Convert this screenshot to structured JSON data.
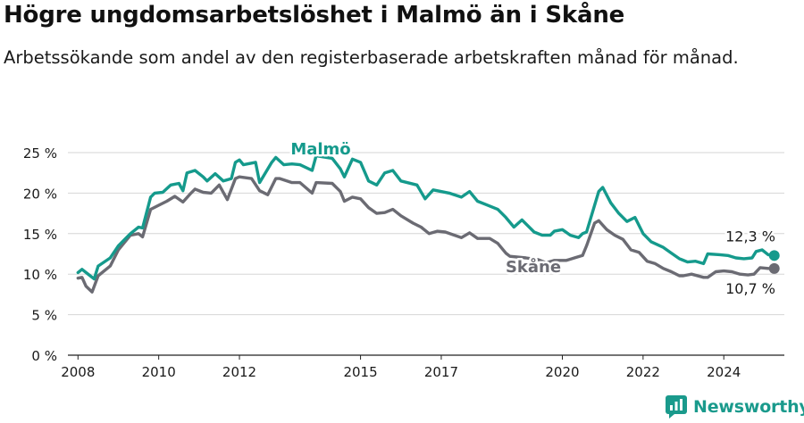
{
  "title": "Högre ungdomsarbetslöshet i Malmö än i Skåne",
  "subtitle": "Arbetssökande som andel av den registerbaserade arbetskraften månad för månad.",
  "brand": {
    "name": "Newsworthy",
    "icon": "newsworthy-logo-icon",
    "color": "#1a9a8c"
  },
  "chart_data": {
    "type": "line",
    "ylim": [
      0,
      25
    ],
    "y_ticks": [
      "0 %",
      "5 %",
      "10 %",
      "15 %",
      "20 %",
      "25 %"
    ],
    "x_ticks": [
      "2008",
      "2010",
      "2012",
      "2015",
      "2017",
      "2020",
      "2022",
      "2024"
    ],
    "xlim": [
      2007.75,
      2025.5
    ],
    "grid": true,
    "series": [
      {
        "name": "Malmö",
        "color": "#159a8c",
        "end_label": "12,3 %",
        "points": [
          [
            2008.0,
            10.2
          ],
          [
            2008.1,
            10.6
          ],
          [
            2008.3,
            9.8
          ],
          [
            2008.4,
            9.4
          ],
          [
            2008.5,
            11.0
          ],
          [
            2008.8,
            12.0
          ],
          [
            2009.0,
            13.5
          ],
          [
            2009.3,
            15.0
          ],
          [
            2009.5,
            15.8
          ],
          [
            2009.6,
            15.7
          ],
          [
            2009.8,
            19.5
          ],
          [
            2009.9,
            20.0
          ],
          [
            2010.1,
            20.1
          ],
          [
            2010.3,
            21.0
          ],
          [
            2010.5,
            21.2
          ],
          [
            2010.6,
            20.3
          ],
          [
            2010.7,
            22.5
          ],
          [
            2010.9,
            22.8
          ],
          [
            2011.1,
            22.0
          ],
          [
            2011.2,
            21.5
          ],
          [
            2011.4,
            22.4
          ],
          [
            2011.6,
            21.5
          ],
          [
            2011.8,
            21.8
          ],
          [
            2011.9,
            23.8
          ],
          [
            2012.0,
            24.1
          ],
          [
            2012.1,
            23.5
          ],
          [
            2012.4,
            23.8
          ],
          [
            2012.5,
            21.3
          ],
          [
            2012.8,
            23.8
          ],
          [
            2012.9,
            24.4
          ],
          [
            2013.1,
            23.5
          ],
          [
            2013.3,
            23.6
          ],
          [
            2013.5,
            23.5
          ],
          [
            2013.8,
            22.8
          ],
          [
            2013.9,
            24.6
          ],
          [
            2014.3,
            24.3
          ],
          [
            2014.5,
            23.0
          ],
          [
            2014.6,
            22.0
          ],
          [
            2014.8,
            24.2
          ],
          [
            2015.0,
            23.8
          ],
          [
            2015.2,
            21.5
          ],
          [
            2015.4,
            21.0
          ],
          [
            2015.6,
            22.5
          ],
          [
            2015.8,
            22.8
          ],
          [
            2016.0,
            21.5
          ],
          [
            2016.4,
            21.0
          ],
          [
            2016.6,
            19.3
          ],
          [
            2016.8,
            20.4
          ],
          [
            2017.2,
            20.0
          ],
          [
            2017.5,
            19.5
          ],
          [
            2017.7,
            20.2
          ],
          [
            2017.9,
            19.0
          ],
          [
            2018.1,
            18.6
          ],
          [
            2018.4,
            18.0
          ],
          [
            2018.6,
            17.0
          ],
          [
            2018.8,
            15.8
          ],
          [
            2019.0,
            16.7
          ],
          [
            2019.3,
            15.2
          ],
          [
            2019.5,
            14.8
          ],
          [
            2019.7,
            14.8
          ],
          [
            2019.8,
            15.3
          ],
          [
            2020.0,
            15.5
          ],
          [
            2020.2,
            14.8
          ],
          [
            2020.4,
            14.5
          ],
          [
            2020.5,
            15.0
          ],
          [
            2020.6,
            15.2
          ],
          [
            2020.9,
            20.2
          ],
          [
            2021.0,
            20.7
          ],
          [
            2021.2,
            18.8
          ],
          [
            2021.4,
            17.5
          ],
          [
            2021.6,
            16.5
          ],
          [
            2021.8,
            17.0
          ],
          [
            2022.0,
            15.0
          ],
          [
            2022.2,
            14.0
          ],
          [
            2022.5,
            13.3
          ],
          [
            2022.7,
            12.6
          ],
          [
            2022.9,
            11.9
          ],
          [
            2023.1,
            11.5
          ],
          [
            2023.3,
            11.6
          ],
          [
            2023.5,
            11.3
          ],
          [
            2023.6,
            12.5
          ],
          [
            2023.9,
            12.4
          ],
          [
            2024.1,
            12.3
          ],
          [
            2024.3,
            12.0
          ],
          [
            2024.5,
            11.9
          ],
          [
            2024.7,
            12.0
          ],
          [
            2024.8,
            12.8
          ],
          [
            2024.95,
            13.0
          ],
          [
            2025.1,
            12.4
          ],
          [
            2025.25,
            12.3
          ]
        ]
      },
      {
        "name": "Skåne",
        "color": "#6b6b73",
        "end_label": "10,7 %",
        "points": [
          [
            2008.0,
            9.5
          ],
          [
            2008.1,
            9.6
          ],
          [
            2008.2,
            8.5
          ],
          [
            2008.35,
            7.8
          ],
          [
            2008.5,
            9.8
          ],
          [
            2008.8,
            11.0
          ],
          [
            2009.0,
            13.0
          ],
          [
            2009.3,
            14.8
          ],
          [
            2009.5,
            15.0
          ],
          [
            2009.6,
            14.6
          ],
          [
            2009.8,
            18.0
          ],
          [
            2010.0,
            18.5
          ],
          [
            2010.2,
            19.0
          ],
          [
            2010.4,
            19.6
          ],
          [
            2010.6,
            18.9
          ],
          [
            2010.8,
            20.0
          ],
          [
            2010.9,
            20.5
          ],
          [
            2011.1,
            20.1
          ],
          [
            2011.3,
            20.0
          ],
          [
            2011.5,
            21.0
          ],
          [
            2011.7,
            19.2
          ],
          [
            2011.9,
            21.8
          ],
          [
            2012.0,
            22.0
          ],
          [
            2012.3,
            21.8
          ],
          [
            2012.5,
            20.3
          ],
          [
            2012.7,
            19.8
          ],
          [
            2012.9,
            21.8
          ],
          [
            2013.0,
            21.8
          ],
          [
            2013.3,
            21.3
          ],
          [
            2013.5,
            21.3
          ],
          [
            2013.8,
            20.0
          ],
          [
            2013.9,
            21.3
          ],
          [
            2014.3,
            21.2
          ],
          [
            2014.5,
            20.2
          ],
          [
            2014.6,
            19.0
          ],
          [
            2014.8,
            19.5
          ],
          [
            2015.0,
            19.3
          ],
          [
            2015.2,
            18.2
          ],
          [
            2015.4,
            17.5
          ],
          [
            2015.6,
            17.6
          ],
          [
            2015.8,
            18.0
          ],
          [
            2016.0,
            17.2
          ],
          [
            2016.3,
            16.3
          ],
          [
            2016.5,
            15.8
          ],
          [
            2016.7,
            15.0
          ],
          [
            2016.9,
            15.3
          ],
          [
            2017.1,
            15.2
          ],
          [
            2017.5,
            14.5
          ],
          [
            2017.7,
            15.1
          ],
          [
            2017.9,
            14.4
          ],
          [
            2018.2,
            14.4
          ],
          [
            2018.4,
            13.8
          ],
          [
            2018.6,
            12.6
          ],
          [
            2018.7,
            12.2
          ],
          [
            2019.1,
            12.0
          ],
          [
            2019.4,
            11.8
          ],
          [
            2019.6,
            11.4
          ],
          [
            2019.8,
            11.7
          ],
          [
            2020.1,
            11.7
          ],
          [
            2020.3,
            12.0
          ],
          [
            2020.5,
            12.3
          ],
          [
            2020.6,
            13.5
          ],
          [
            2020.8,
            16.3
          ],
          [
            2020.9,
            16.6
          ],
          [
            2021.1,
            15.5
          ],
          [
            2021.3,
            14.8
          ],
          [
            2021.5,
            14.3
          ],
          [
            2021.7,
            13.0
          ],
          [
            2021.9,
            12.7
          ],
          [
            2022.1,
            11.6
          ],
          [
            2022.3,
            11.3
          ],
          [
            2022.5,
            10.7
          ],
          [
            2022.7,
            10.3
          ],
          [
            2022.9,
            9.8
          ],
          [
            2023.0,
            9.8
          ],
          [
            2023.2,
            10.0
          ],
          [
            2023.5,
            9.6
          ],
          [
            2023.6,
            9.6
          ],
          [
            2023.8,
            10.3
          ],
          [
            2024.0,
            10.4
          ],
          [
            2024.2,
            10.3
          ],
          [
            2024.4,
            10.0
          ],
          [
            2024.6,
            9.9
          ],
          [
            2024.75,
            10.0
          ],
          [
            2024.9,
            10.8
          ],
          [
            2025.1,
            10.7
          ],
          [
            2025.25,
            10.7
          ]
        ]
      }
    ]
  }
}
